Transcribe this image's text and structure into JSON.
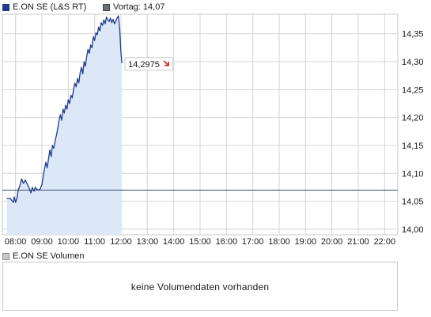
{
  "legend": {
    "main_label": "E.ON SE (L&S RT)",
    "previous_label": "Vortag: 14,07",
    "volume_label": "E.ON SE Volumen"
  },
  "volume": {
    "message": "keine Volumendaten vorhanden"
  },
  "colors": {
    "line": "#1f3b8c",
    "fill": "#dce8f8",
    "previous_close_line": "#3a4a6e",
    "grid": "#d4d4d4",
    "arrow_down": "#d42020"
  },
  "chart_data": {
    "type": "area",
    "title": "",
    "xlabel": "",
    "ylabel": "",
    "x_ticks": [
      "08:00",
      "09:00",
      "10:00",
      "11:00",
      "12:00",
      "13:00",
      "14:00",
      "15:00",
      "16:00",
      "17:00",
      "18:00",
      "19:00",
      "20:00",
      "21:00",
      "22:00"
    ],
    "y_ticks": [
      "14,00",
      "14,05",
      "14,10",
      "14,15",
      "14,20",
      "14,25",
      "14,30",
      "14,35"
    ],
    "y_tick_values": [
      14.0,
      14.05,
      14.1,
      14.15,
      14.2,
      14.25,
      14.3,
      14.35
    ],
    "ylim": [
      13.99,
      14.385
    ],
    "xlim": [
      "07:30",
      "22:30"
    ],
    "grid": true,
    "previous_close": 14.07,
    "last_value": 14.2975,
    "last_value_label": "14,2975",
    "trend": "down",
    "series": [
      {
        "name": "E.ON SE (L&S RT)",
        "x": [
          "07:40",
          "07:48",
          "07:55",
          "07:57",
          "08:00",
          "08:03",
          "08:06",
          "08:10",
          "08:14",
          "08:18",
          "08:22",
          "08:27",
          "08:32",
          "08:35",
          "08:38",
          "08:42",
          "08:45",
          "08:48",
          "08:52",
          "08:56",
          "09:00",
          "09:03",
          "09:06",
          "09:09",
          "09:12",
          "09:15",
          "09:18",
          "09:21",
          "09:24",
          "09:27",
          "09:30",
          "09:33",
          "09:36",
          "09:39",
          "09:42",
          "09:45",
          "09:48",
          "09:51",
          "09:54",
          "09:57",
          "10:00",
          "10:03",
          "10:06",
          "10:09",
          "10:12",
          "10:15",
          "10:18",
          "10:21",
          "10:24",
          "10:27",
          "10:30",
          "10:33",
          "10:36",
          "10:39",
          "10:42",
          "10:45",
          "10:48",
          "10:51",
          "10:54",
          "10:57",
          "11:00",
          "11:03",
          "11:06",
          "11:09",
          "11:12",
          "11:15",
          "11:18",
          "11:21",
          "11:24",
          "11:27",
          "11:30",
          "11:33",
          "11:36",
          "11:39",
          "11:42",
          "11:45",
          "11:48",
          "11:51",
          "11:54",
          "11:57",
          "12:00",
          "12:02"
        ],
        "values": [
          14.055,
          14.055,
          14.048,
          14.058,
          14.048,
          14.055,
          14.07,
          14.078,
          14.09,
          14.082,
          14.088,
          14.08,
          14.072,
          14.065,
          14.075,
          14.068,
          14.075,
          14.072,
          14.07,
          14.072,
          14.08,
          14.095,
          14.108,
          14.12,
          14.11,
          14.125,
          14.142,
          14.13,
          14.15,
          14.145,
          14.158,
          14.168,
          14.18,
          14.195,
          14.205,
          14.195,
          14.215,
          14.208,
          14.222,
          14.215,
          14.232,
          14.225,
          14.24,
          14.235,
          14.25,
          14.262,
          14.255,
          14.27,
          14.262,
          14.28,
          14.29,
          14.278,
          14.3,
          14.292,
          14.31,
          14.322,
          14.315,
          14.33,
          14.325,
          14.345,
          14.338,
          14.352,
          14.348,
          14.362,
          14.355,
          14.37,
          14.365,
          14.375,
          14.368,
          14.38,
          14.375,
          14.372,
          14.378,
          14.37,
          14.376,
          14.368,
          14.372,
          14.378,
          14.382,
          14.36,
          14.315,
          14.2975
        ]
      }
    ]
  }
}
